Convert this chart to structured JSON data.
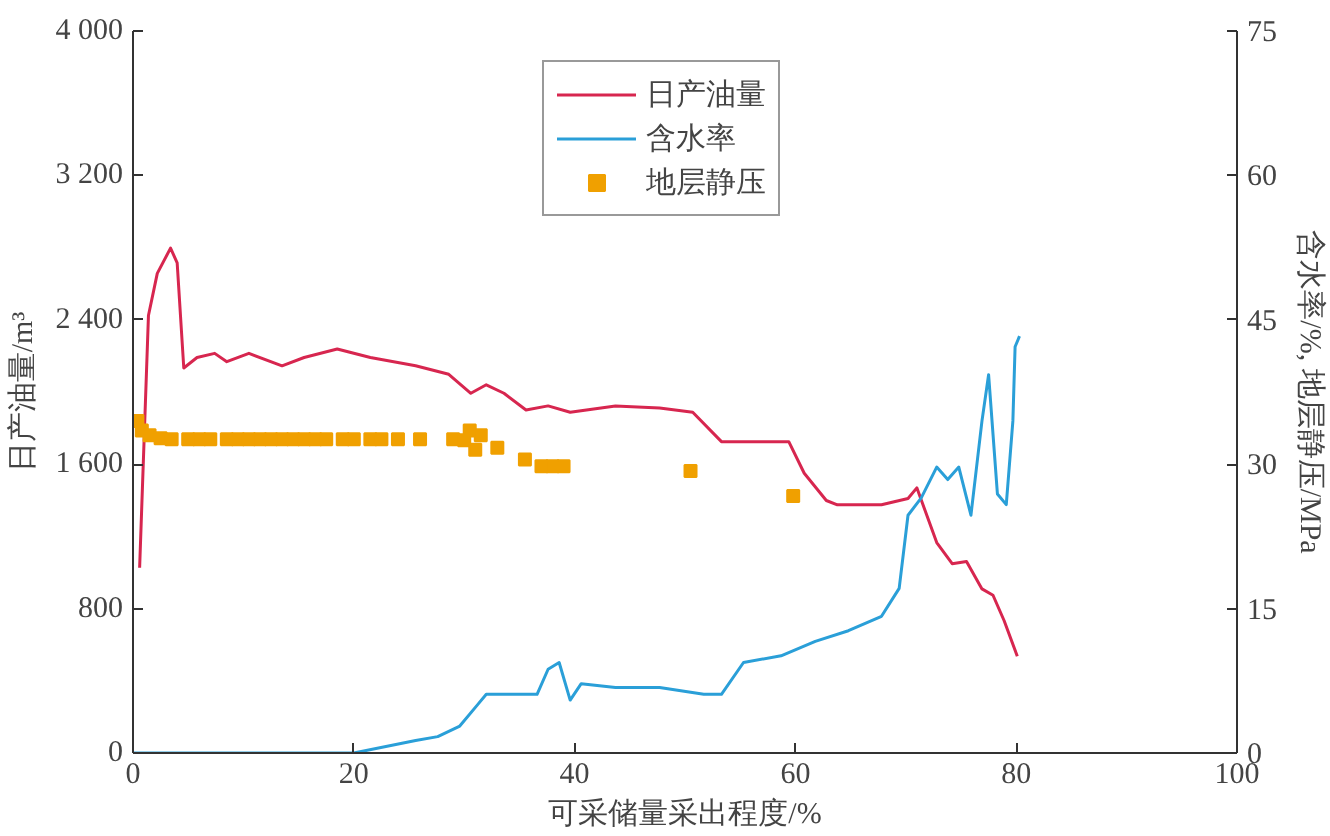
{
  "chart_data": {
    "type": "line",
    "xlabel": "可采储量采出程度/%",
    "ylabel": "日产油量/m³",
    "y2label": "含水率/%, 地层静压/MPa",
    "xlim": [
      0,
      100
    ],
    "xticks": [
      0,
      20,
      40,
      60,
      80,
      100
    ],
    "ylim": [
      0,
      4000
    ],
    "yticks": [
      0,
      {
        "value": 800,
        "label": "800"
      },
      {
        "value": 1600,
        "label": "1 600"
      },
      {
        "value": 2400,
        "label": "2 400"
      },
      {
        "value": 3200,
        "label": "3 200"
      },
      {
        "value": 4000,
        "label": "4 000"
      }
    ],
    "y2lim": [
      0,
      75
    ],
    "y2ticks": [
      0,
      15,
      30,
      45,
      60,
      75
    ],
    "grid": false,
    "legend": "top right",
    "series": [
      {
        "name": "日产油量",
        "color": "#d7264f",
        "x": [
          0.6,
          1.4,
          2.2,
          3.4,
          4.0,
          4.6,
          5.8,
          7.4,
          8.5,
          10.5,
          13.5,
          15.5,
          18.5,
          21.5,
          25.6,
          28.6,
          30.6,
          32,
          33.6,
          35.6,
          37.6,
          39.6,
          43.7,
          47.7,
          50.7,
          53.3,
          59.4,
          60.8,
          62.8,
          63.8,
          65.8,
          67.8,
          70.2,
          71,
          72.8,
          74.2,
          75.5,
          76.9,
          77.9,
          78.9,
          80.1
        ],
        "values": [
          1026,
          2424,
          2657,
          2797,
          2716,
          2133,
          2191,
          2214,
          2168,
          2214,
          2145,
          2191,
          2238,
          2191,
          2145,
          2098,
          1993,
          2040,
          1993,
          1900,
          1923,
          1888,
          1923,
          1911,
          1888,
          1725,
          1725,
          1550,
          1399,
          1375,
          1375,
          1375,
          1410,
          1469,
          1166,
          1049,
          1061,
          909,
          874,
          734,
          536
        ]
      },
      {
        "name": "含水率",
        "axis": "y2",
        "color": "#2a9fd8",
        "x": [
          0,
          10,
          20,
          25.6,
          27.6,
          29.6,
          31.2,
          32,
          34,
          36.6,
          37.6,
          38.6,
          39.6,
          40.6,
          43.7,
          47.7,
          51.7,
          53.3,
          55.3,
          58.7,
          61.8,
          64.8,
          67.8,
          69.4,
          70.2,
          71.4,
          72.8,
          73.8,
          74.8,
          75.9,
          76.9,
          77.5,
          78.3,
          79.1,
          79.7,
          79.9,
          80.3
        ],
        "values": [
          0,
          0,
          0,
          1.3,
          1.7,
          2.8,
          5.0,
          6.1,
          6.1,
          6.1,
          8.7,
          9.4,
          5.5,
          7.2,
          6.8,
          6.8,
          6.1,
          6.1,
          9.4,
          10.1,
          11.6,
          12.7,
          14.2,
          17.1,
          24.7,
          26.5,
          29.7,
          28.4,
          29.7,
          24.7,
          34.5,
          39.3,
          26.9,
          25.8,
          34.5,
          42.2,
          43.3
        ]
      },
      {
        "name": "地层静压",
        "type": "scatter",
        "axis": "y2",
        "marker": "square",
        "color": "#f0a000",
        "x": [
          0.4,
          0.8,
          1.5,
          2.5,
          3.5,
          5,
          6,
          7,
          8.5,
          9.5,
          10.5,
          11.5,
          12.5,
          13.5,
          14.5,
          15.5,
          16.5,
          17.5,
          19,
          20,
          21.5,
          22.5,
          24,
          26,
          29,
          30,
          30.5,
          31,
          31.5,
          33,
          35.5,
          37,
          38,
          39,
          50.5,
          59.8
        ],
        "values": [
          34.5,
          33.5,
          33.0,
          32.7,
          32.6,
          32.6,
          32.6,
          32.6,
          32.6,
          32.6,
          32.6,
          32.6,
          32.6,
          32.6,
          32.6,
          32.6,
          32.6,
          32.6,
          32.6,
          32.6,
          32.6,
          32.6,
          32.6,
          32.6,
          32.6,
          32.5,
          33.5,
          31.5,
          33.0,
          31.7,
          30.5,
          29.8,
          29.8,
          29.8,
          29.3,
          26.7
        ]
      }
    ]
  }
}
